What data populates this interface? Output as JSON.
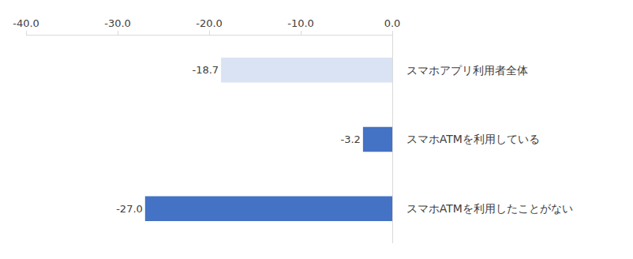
{
  "chart_data": {
    "type": "bar",
    "orientation": "horizontal",
    "categories": [
      "スマホアプリ利用者全体",
      "スマホATMを利用している",
      "スマホATMを利用したことがない"
    ],
    "values": [
      -18.7,
      -3.2,
      -27.0
    ],
    "value_labels": [
      "-18.7",
      "-3.2",
      "-27.0"
    ],
    "colors": [
      "#dae3f3",
      "#4472c4",
      "#4472c4"
    ],
    "xlim": [
      -40,
      0
    ],
    "xticks": [
      {
        "value": -40,
        "label": "-40.0"
      },
      {
        "value": -30,
        "label": "-30.0"
      },
      {
        "value": -20,
        "label": "-20.0"
      },
      {
        "value": -10,
        "label": "-10.0"
      },
      {
        "value": 0,
        "label": "0.0"
      }
    ],
    "grid": false,
    "data_labels": true
  }
}
